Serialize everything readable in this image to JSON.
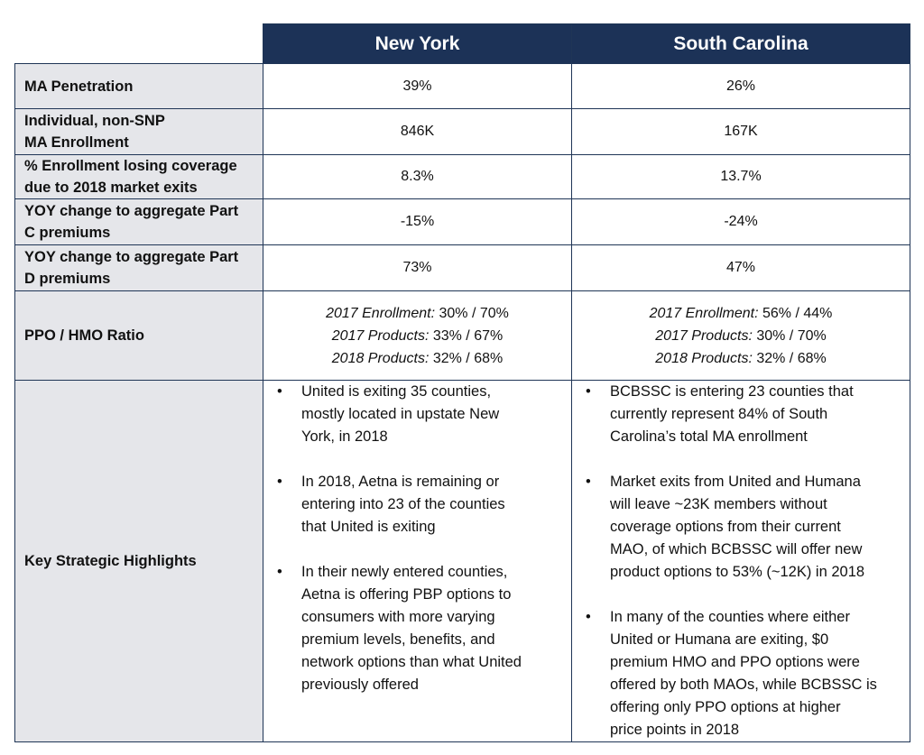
{
  "columns": [
    "New York",
    "South Carolina"
  ],
  "rows": [
    {
      "label": "MA Penetration",
      "ny": "39%",
      "sc": "26%"
    },
    {
      "label_lines": [
        "Individual, non-SNP",
        "MA Enrollment"
      ],
      "ny": "846K",
      "sc": "167K"
    },
    {
      "label_lines": [
        "% Enrollment losing coverage",
        "due to 2018 market exits"
      ],
      "ny": "8.3%",
      "sc": "13.7%"
    },
    {
      "label_lines": [
        "YOY change to aggregate Part",
        "C premiums"
      ],
      "ny": "-15%",
      "sc": "-24%"
    },
    {
      "label_lines": [
        "YOY change to aggregate Part",
        "D premiums"
      ],
      "ny": "73%",
      "sc": "47%"
    }
  ],
  "ratio": {
    "label": "PPO / HMO Ratio",
    "ny": [
      {
        "k": "2017 Enrollment:",
        "v": " 30% / 70%"
      },
      {
        "k": "2017 Products:",
        "v": " 33% / 67%"
      },
      {
        "k": "2018 Products:",
        "v": " 32% / 68%"
      }
    ],
    "sc": [
      {
        "k": "2017 Enrollment:",
        "v": " 56% / 44%"
      },
      {
        "k": "2017 Products:",
        "v": " 30% / 70%"
      },
      {
        "k": "2018 Products:",
        "v": " 32% / 68%"
      }
    ]
  },
  "highlights": {
    "label": "Key Strategic Highlights",
    "bullet": "•",
    "ny": [
      [
        "United is exiting 35 counties,",
        "mostly located in upstate New",
        "York, in 2018"
      ],
      [
        "In 2018, Aetna is remaining or",
        "entering into 23 of the counties",
        "that United is exiting"
      ],
      [
        "In their newly entered counties,",
        "Aetna is offering PBP options to",
        "consumers with more varying",
        "premium levels, benefits, and",
        "network options than what United",
        "previously offered"
      ]
    ],
    "sc": [
      [
        "BCBSSC is entering 23 counties that",
        "currently represent 84% of South",
        "Carolina’s total MA enrollment"
      ],
      [
        "Market exits from United and Humana",
        "will leave ~23K members without",
        "coverage options from their current",
        "MAO, of which BCBSSC will offer new",
        "product options to 53% (~12K) in 2018"
      ],
      [
        "In many of the counties where either",
        "United or Humana are exiting, $0",
        "premium HMO and PPO options were",
        "offered by both MAOs, while BCBSSC is",
        "offering only PPO options at higher",
        "price points in 2018"
      ]
    ]
  }
}
